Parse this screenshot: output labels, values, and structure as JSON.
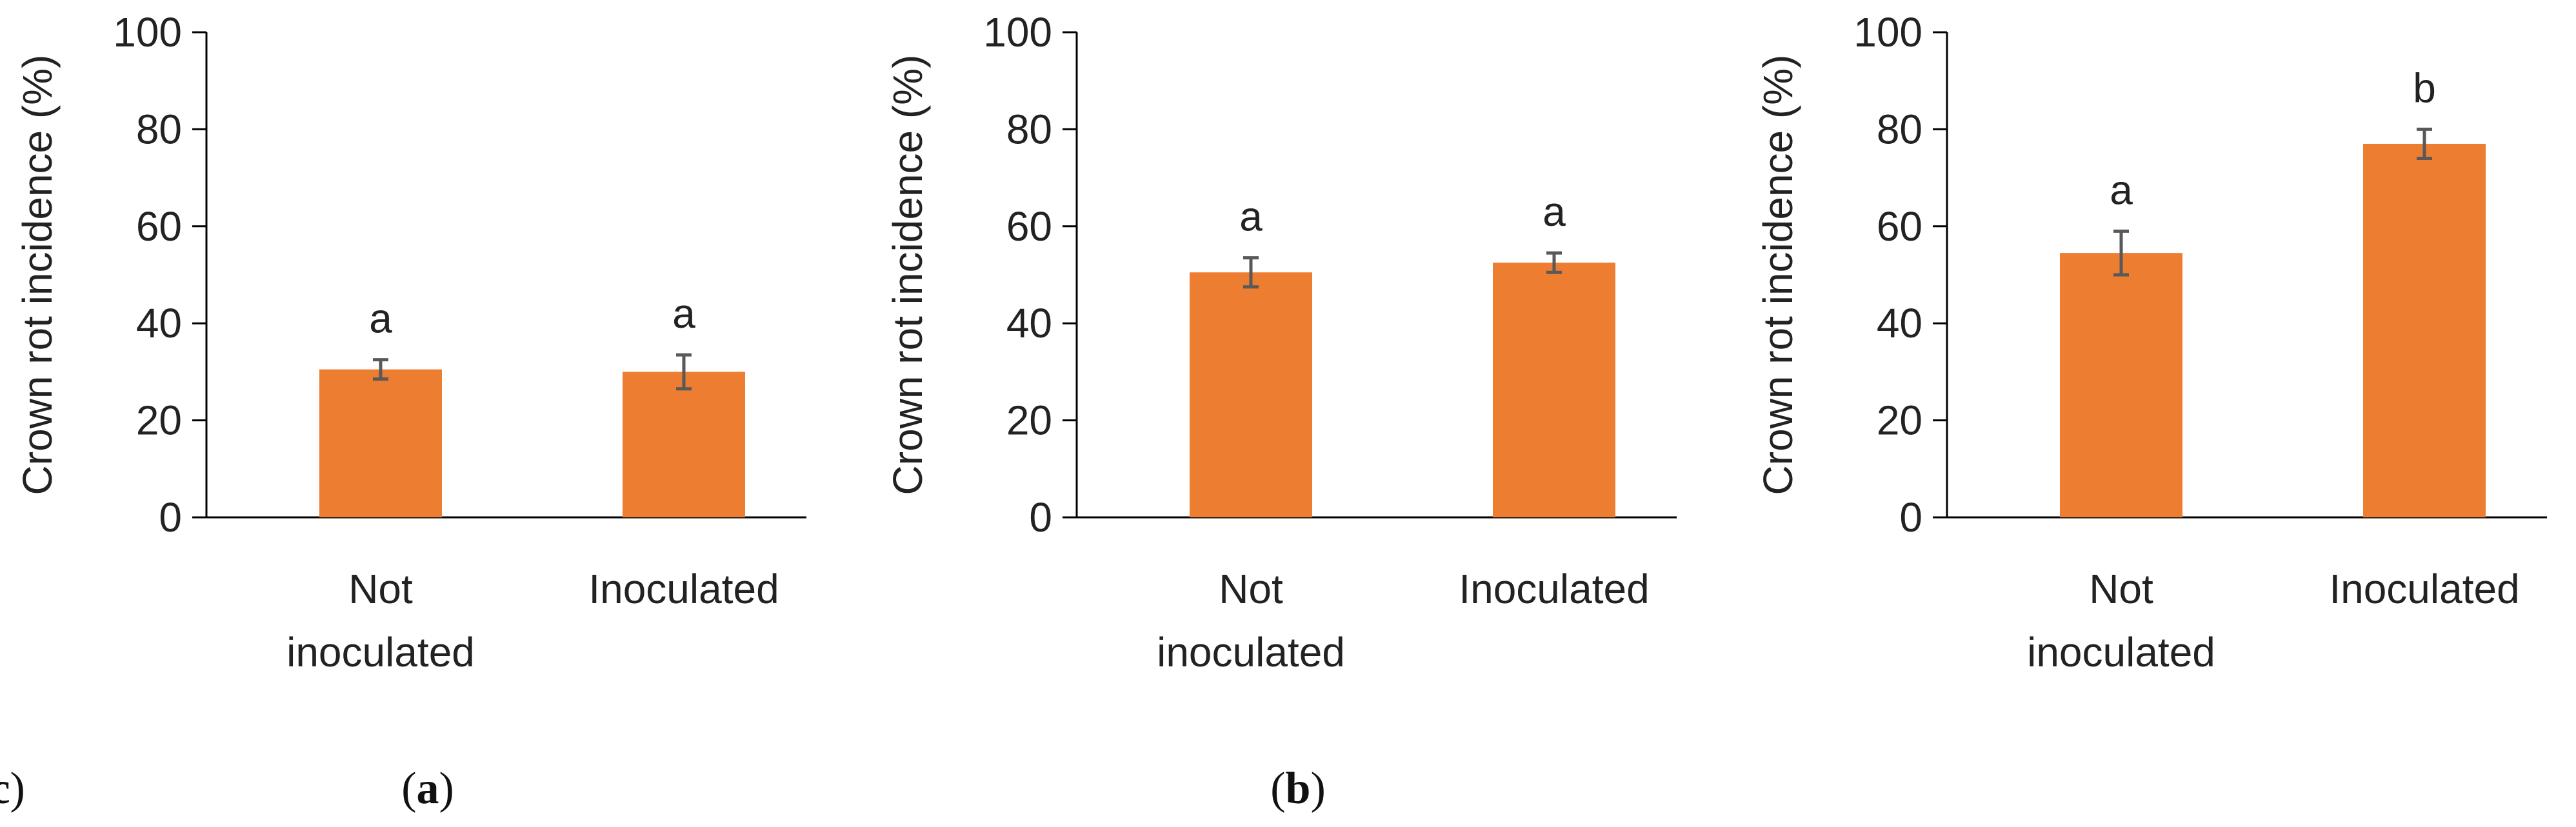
{
  "chart_data": [
    {
      "type": "bar",
      "panel_label": "a",
      "caption_open": "(",
      "caption_close": ")",
      "categories": [
        "Not inoculated",
        "Inoculated"
      ],
      "category_lines": [
        [
          "Not",
          "inoculated"
        ],
        [
          "Inoculated"
        ]
      ],
      "values": [
        30.5,
        30
      ],
      "errors": [
        2,
        3.5
      ],
      "significance": [
        "a",
        "a"
      ],
      "ylabel": "Crown rot incidence (%)",
      "ylim": [
        0,
        100
      ],
      "yticks": [
        "0",
        "20",
        "40",
        "60",
        "80",
        "100"
      ],
      "bar_color": "#ED7D31",
      "error_color": "#595959"
    },
    {
      "type": "bar",
      "panel_label": "b",
      "caption_open": "(",
      "caption_close": ")",
      "categories": [
        "Not inoculated",
        "Inoculated"
      ],
      "category_lines": [
        [
          "Not",
          "inoculated"
        ],
        [
          "Inoculated"
        ]
      ],
      "values": [
        50.5,
        52.5
      ],
      "errors": [
        3,
        2
      ],
      "significance": [
        "a",
        "a"
      ],
      "ylabel": "Crown rot incidence (%)",
      "ylim": [
        0,
        100
      ],
      "yticks": [
        "0",
        "20",
        "40",
        "60",
        "80",
        "100"
      ],
      "bar_color": "#ED7D31",
      "error_color": "#595959"
    },
    {
      "type": "bar",
      "panel_label": "c",
      "caption_open": "(",
      "caption_close": ")",
      "categories": [
        "Not inoculated",
        "Inoculated"
      ],
      "category_lines": [
        [
          "Not",
          "inoculated"
        ],
        [
          "Inoculated"
        ]
      ],
      "values": [
        54.5,
        77
      ],
      "errors": [
        4.5,
        3
      ],
      "significance": [
        "a",
        "b"
      ],
      "ylabel": "Crown rot incidence (%)",
      "ylim": [
        0,
        100
      ],
      "yticks": [
        "0",
        "20",
        "40",
        "60",
        "80",
        "100"
      ],
      "bar_color": "#ED7D31",
      "error_color": "#595959"
    }
  ]
}
